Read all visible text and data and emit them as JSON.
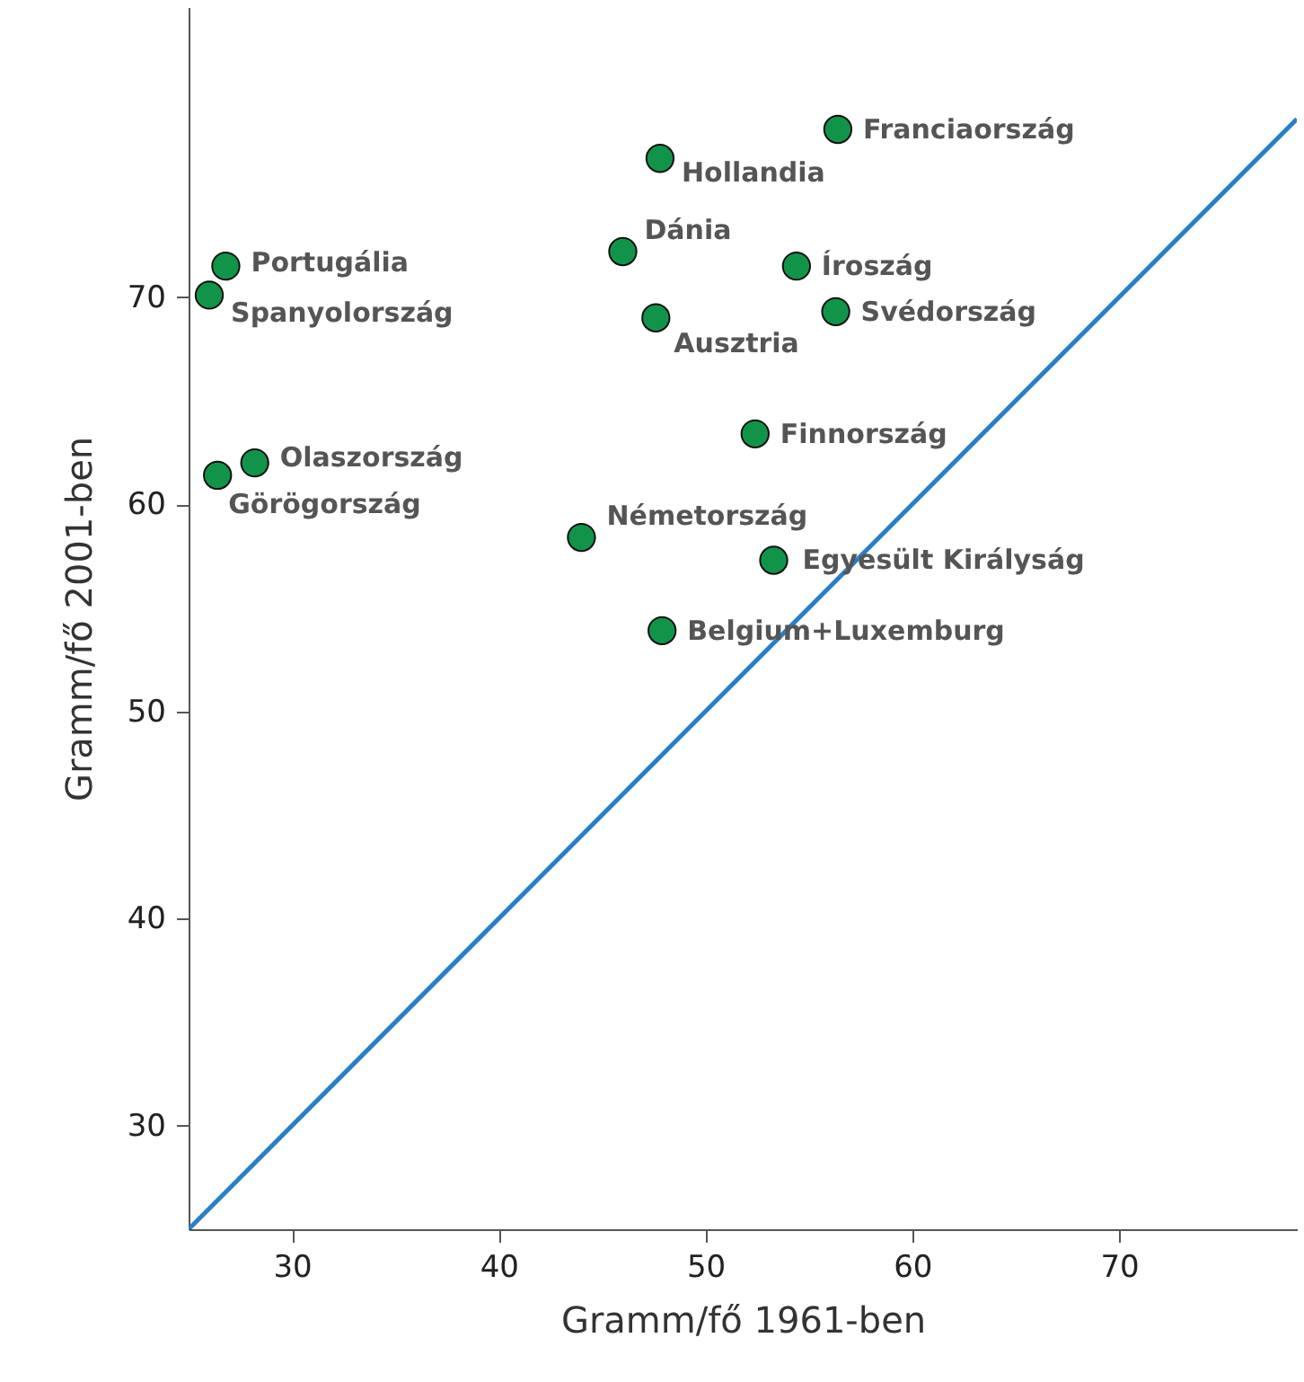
{
  "chart_data": {
    "type": "scatter",
    "xlabel": "Gramm/fő 1961-ben",
    "ylabel": "Gramm/fő 2001-ben",
    "xlim": [
      25,
      78.6
    ],
    "ylim": [
      25,
      84
    ],
    "xticks": [
      30,
      40,
      50,
      60,
      70
    ],
    "yticks": [
      30,
      40,
      50,
      60,
      70
    ],
    "grid": false,
    "series": [
      {
        "marker": "circle",
        "color": "#12934a",
        "x": [
          56.4,
          47.8,
          46.0,
          54.4,
          26.8,
          26.0,
          47.6,
          56.3,
          52.4,
          28.2,
          26.4,
          44.0,
          53.3,
          47.9
        ],
        "values": [
          78.1,
          76.7,
          72.2,
          71.5,
          71.5,
          70.1,
          69.0,
          69.3,
          63.4,
          62.0,
          61.4,
          58.4,
          57.3,
          53.9
        ]
      },
      {
        "type": "line",
        "color": "#2a7fc4",
        "line_style": "solid",
        "x": [
          25,
          78.6
        ],
        "values": [
          25,
          78.6
        ]
      }
    ],
    "annotations": [
      {
        "text": "Franciaország",
        "x": 56.4,
        "y": 78.1
      },
      {
        "text": "Hollandia",
        "x": 47.8,
        "y": 76.7
      },
      {
        "text": "Dánia",
        "x": 46.0,
        "y": 72.2
      },
      {
        "text": "Íroszág",
        "x": 54.4,
        "y": 71.5
      },
      {
        "text": "Portugália",
        "x": 26.8,
        "y": 71.5
      },
      {
        "text": "Spanyolország",
        "x": 26.0,
        "y": 70.1
      },
      {
        "text": "Ausztria",
        "x": 47.6,
        "y": 69.0
      },
      {
        "text": "Svédország",
        "x": 56.3,
        "y": 69.3
      },
      {
        "text": "Finnország",
        "x": 52.4,
        "y": 63.4
      },
      {
        "text": "Olaszország",
        "x": 28.2,
        "y": 62.0
      },
      {
        "text": "Görögország",
        "x": 26.4,
        "y": 61.4
      },
      {
        "text": "Németország",
        "x": 44.0,
        "y": 58.4
      },
      {
        "text": "Egyesült Királyság",
        "x": 53.3,
        "y": 57.3
      },
      {
        "text": "Belgium+Luxemburg",
        "x": 47.9,
        "y": 53.9
      }
    ]
  }
}
